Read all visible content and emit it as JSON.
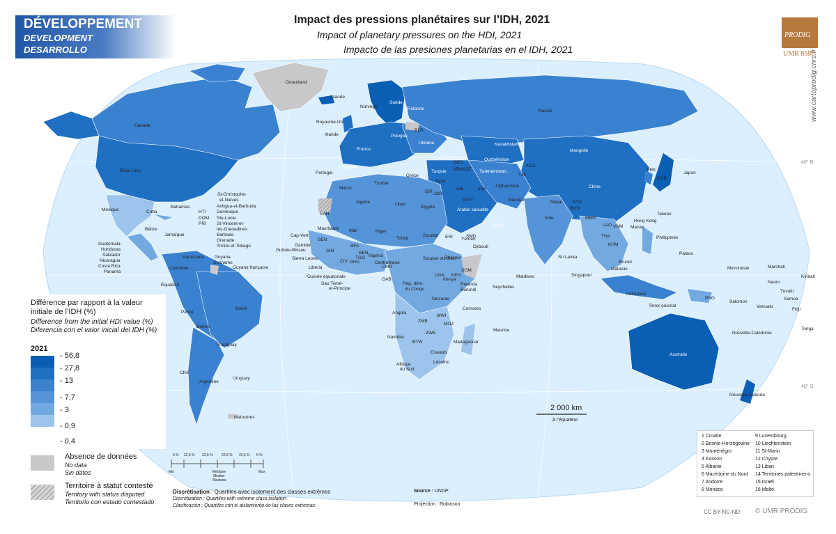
{
  "section": {
    "fr": "DÉVELOPPEMENT",
    "en": "DEVELOPMENT",
    "es": "DESARROLLO"
  },
  "title": {
    "fr": "Impact des pressions planétaires sur l’IDH, 2021",
    "en": "Impact of planetary pressures on the HDI, 2021",
    "es": "Impacto de las presiones planetarias en el IDH, 2021"
  },
  "logo": {
    "name": "PRODIG",
    "umr": "UMR 8586"
  },
  "website": "www.cartoprodig.cnrs.fr",
  "colors": {
    "ocean": "#dcefff",
    "land_nodata": "#c8c8ca",
    "c1": "#0a5fb4",
    "c2": "#1f6fc2",
    "c3": "#3a82cf",
    "c4": "#5594d8",
    "c5": "#73a9e1",
    "c6": "#9cc4ec",
    "c7": "#c6ddf5"
  },
  "legend": {
    "title_fr": "Différence par rapport à la valeur initiale de l’IDH (%)",
    "title_en": "Difference from the initial HDI value (%)",
    "title_es": "Diferencia con el valor inicial del IDH (%)",
    "year": "2021",
    "breaks": [
      "- 56,8",
      "- 27,8",
      "- 13",
      "- 7,7",
      "- 3",
      "- 0,9",
      "- 0,4"
    ],
    "nodata_fr": "Absence de données",
    "nodata_en": "No data",
    "nodata_es": "Sin datos",
    "disputed_fr": "Territoire à statut contesté",
    "disputed_en": "Territory with status disputed",
    "disputed_es": "Territorio con estado contestado"
  },
  "scale": {
    "label": "2 000 km",
    "sub": "à l’équateur"
  },
  "latitudes": {
    "north": "40° N",
    "south": "40° S"
  },
  "histogram": {
    "ticks": [
      "5 %",
      "22,5 %",
      "22,5 %",
      "22,5 %",
      "22,5 %",
      "5 %"
    ],
    "min": "Min",
    "max": "Max",
    "median_fr": "Médiane",
    "median_en": "Median",
    "median_es": "Mediana"
  },
  "notes": {
    "discr_fr_label": "Discrétisation",
    "discr_fr": " : Quartiles avec isolement des classes extrêmes",
    "discr_en": "Discretization : Quartiles with extreme class isolation",
    "discr_es": "Clasificación : Quartiles con el aislamiento de las clases extremas",
    "source_label": "Source",
    "source": " : UNDP",
    "projection": "Projection : Robinson",
    "license": "CC BY-NC-ND",
    "copyright": "© UMR PRODIG"
  },
  "numbered": [
    "1 Croatie",
    "2 Bosnie-Herzégovine",
    "3 Monténégro",
    "4 Kosovo",
    "5 Albanie",
    "6 Macédoine du Nord",
    "7 Andorre",
    "8 Monaco",
    "9 Luxembourg",
    "10 Liechtenstein",
    "11 St-Marin",
    "12 Chypre",
    "13 Liban",
    "14 Territoires palestiniens",
    "15 Israël",
    "16 Malte"
  ],
  "labels": {
    "groenland": "Groenland",
    "islande": "Islande",
    "canada": "Canada",
    "etats_unis": "États-Unis",
    "mexique": "Mexique",
    "cuba": "Cuba",
    "bahamas": "Bahamas",
    "hti": "HTI",
    "dom": "DOM",
    "pri": "PRI",
    "belize": "Bélize",
    "jamaique": "Jamaïque",
    "guatemala": "Guatémala",
    "honduras": "Honduras",
    "salvador": "Salvador",
    "nicaragua": "Nicaragua",
    "costa_rica": "Costa Rica",
    "panama": "Panama",
    "st_christophe": "St-Christophe-",
    "et_nieves": "et-Niéves",
    "antigua": "Antigua-et-Barbuda",
    "dominique": "Dominique",
    "ste_lucie": "Ste-Lucie",
    "st_vincent": "St-Vincent-et-",
    "grenadines": "les-Grenadines",
    "barbade": "Barbade",
    "grenade": "Grenade",
    "trinite": "Trinité-et-Tobago",
    "venezuela": "Vénézuela",
    "guyana": "Guyana",
    "suriname": "Suriname",
    "guyane": "Guyane française",
    "colombie": "Colombie",
    "equateur": "Équateur",
    "perou": "Pérou",
    "bresil": "Brésil",
    "bolivie": "Bolivie",
    "paraguay": "Paraguay",
    "chili": "Chili",
    "argentine": "Argentine",
    "uruguay": "Uruguay",
    "malouines": "Malouines",
    "norvege": "Norvège",
    "suede": "Suède",
    "finlande": "Finlande",
    "royaume_uni": "Royaume-Uni",
    "irlande": "Irlande",
    "pologne": "Pologne",
    "blr": "BLR",
    "ukraine": "Ukraine",
    "france": "France",
    "espagne": "Espagne",
    "portugal": "Portugal",
    "grece": "Grèce",
    "turquie": "Turquie",
    "russie": "Russie",
    "kazakhstan": "Kazakhstan",
    "mongolie": "Mongolie",
    "chine": "Chine",
    "japon": "Japon",
    "kor": "KOR",
    "prk": "PRK",
    "ouzbekistan": "Ouzbékistan",
    "turkmenistan": "Turkménistan",
    "afghanistan": "Afghanistan",
    "pakistan": "Pakistan",
    "iran": "Iran",
    "irak": "Irak",
    "syrie": "Syrie",
    "inde": "Inde",
    "nepal": "Népal",
    "arabie": "Arabie saoudite",
    "oman": "Oman",
    "yemen": "Yémen",
    "egypte": "Égypte",
    "libye": "Libye",
    "algerie": "Algérie",
    "tunisie": "Tunisie",
    "maroc": "Maroc",
    "mauritanie": "Mauritanie",
    "mali": "Mali",
    "niger": "Niger",
    "tchad": "Tchad",
    "soudan": "Soudan",
    "soudan_sud": "Soudan du Sud",
    "ethiopie": "Éthiopie",
    "djibouti": "Djibouti",
    "nigeria": "Nigéria",
    "centrafrique": "Centrafrique",
    "cap_vert": "Cap-Vert",
    "gambie": "Gambie",
    "guinee_bissau": "Guinée-Bissau",
    "sierra_leone": "Sierra Leone",
    "liberia": "Libéria",
    "guinee_eq": "Guinée équatoriale",
    "sao_tome": "Sao Tomé-",
    "et_principe": "et-Principe",
    "rdc1": "Rép. dém.",
    "rdc2": "du Congo",
    "kenya": "Kénya",
    "rwanda": "Rwanda",
    "burundi": "Burundi",
    "tanzanie": "Tanzanie",
    "seychelles": "Seychelles",
    "comores": "Comores",
    "angola": "Angola",
    "namibie": "Namibie",
    "afrique_sud1": "Afrique",
    "afrique_sud2": "du Sud",
    "eswatini": "Eswatini",
    "lesotho": "Lésotho",
    "madagascar": "Madagascar",
    "maurice": "Maurice",
    "maldives": "Maldives",
    "sri_lanka": "Sri Lanka",
    "taiwan": "Taïwan",
    "hong_kong": "Hong Kong",
    "macao": "Macao",
    "philippines": "Philippines",
    "palaos": "Palaos",
    "brunei": "Brunei",
    "malaisie": "Malaisie",
    "singapour": "Singapour",
    "indonesie": "Indonésie",
    "timor": "Timor oriental",
    "micronesie": "Micronésie",
    "marshall": "Marshall",
    "nauru": "Nauru",
    "kiribati": "Kiribati",
    "tuvalu": "Tuvalu",
    "samoa": "Samoa",
    "salomon": "Salomon",
    "vanuatu": "Vanuatu",
    "fidji": "Fidji",
    "tonga": "Tonga",
    "nouvelle_caledonie": "Nouvelle-Calédonie",
    "australie": "Australie",
    "nouvelle_zelande": "Nouvelle-Zélande",
    "png": "PNG",
    "mmr": "MMR",
    "tha": "THA",
    "khm": "KHM",
    "vnm": "VNM",
    "lao": "LAO",
    "bgd": "BGD",
    "ken": "KEN",
    "som": "SOM",
    "uga": "UGA",
    "mwi": "MWI",
    "moz": "MOZ",
    "zmb": "ZMB",
    "zwe": "ZWE",
    "btw": "BTW",
    "gab": "GAB",
    "cmr": "CMR",
    "gha": "GHA",
    "civ": "CIV",
    "bfa": "BFA",
    "sen": "SEN",
    "gin": "GIN",
    "ben": "BEN",
    "tgo": "TGO",
    "sah": "SAH",
    "eri": "ERI",
    "smd": "SMD",
    "isr": "ISR",
    "jor": "JOR",
    "kwt": "KWT",
    "geo": "GEO",
    "arm": "ARM",
    "aze": "AZE",
    "kgz": "KGZ",
    "tjk": "TJK",
    "btn": "BTN",
    "lka": "LKA"
  }
}
